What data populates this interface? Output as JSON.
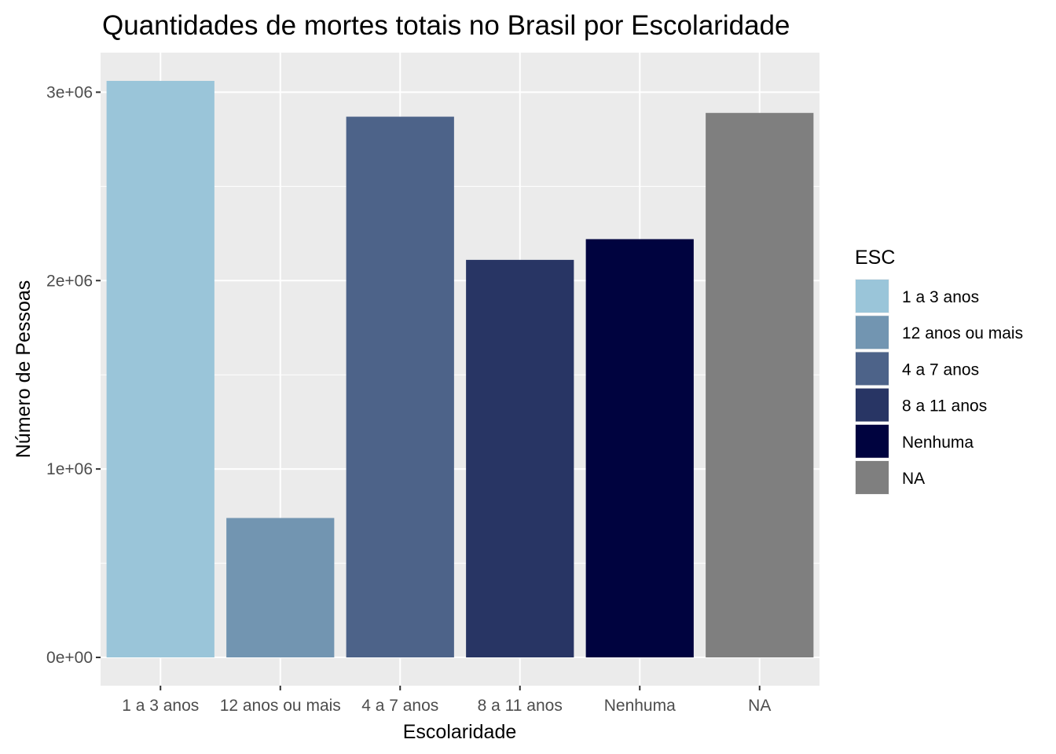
{
  "chart_data": {
    "type": "bar",
    "title": "Quantidades de mortes totais no Brasil por Escolaridade",
    "xlabel": "Escolaridade",
    "ylabel": "Número de Pessoas",
    "categories": [
      "1 a 3 anos",
      "12 anos ou mais",
      "4 a 7 anos",
      "8 a 11 anos",
      "Nenhuma",
      "NA"
    ],
    "values": [
      3060000,
      740000,
      2870000,
      2110000,
      2220000,
      2890000
    ],
    "colors": [
      "#9AC5D9",
      "#7295B1",
      "#4D6389",
      "#283564",
      "#00033F",
      "#7F7F7F"
    ],
    "ylim": [
      -150000,
      3210000
    ],
    "yticks": [
      0,
      1000000,
      2000000,
      3000000
    ],
    "ytick_labels": [
      "0e+00",
      "1e+06",
      "2e+06",
      "3e+06"
    ],
    "grid": true,
    "panel_background": "#EBEBEB",
    "legend": {
      "title": "ESC",
      "placement": "right",
      "entries": [
        "1 a 3 anos",
        "12 anos ou mais",
        "4 a 7 anos",
        "8 a 11 anos",
        "Nenhuma",
        "NA"
      ]
    }
  }
}
